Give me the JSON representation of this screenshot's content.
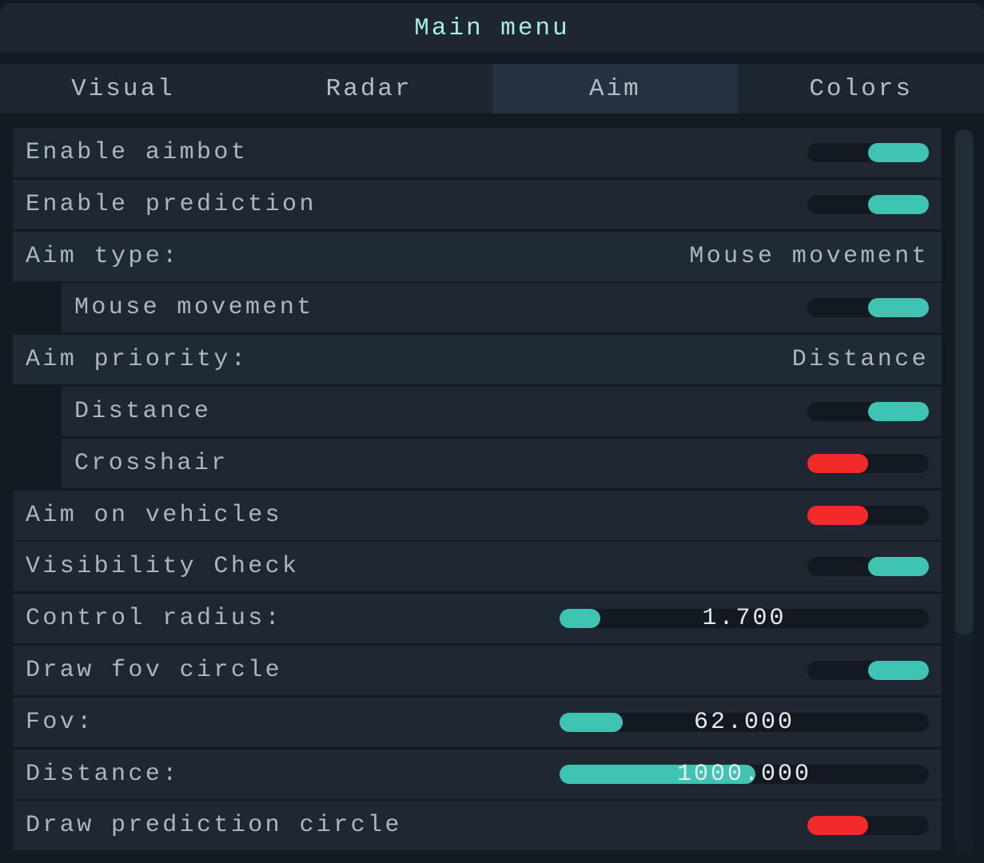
{
  "window": {
    "title": "Main menu"
  },
  "tabs": [
    {
      "label": "Visual",
      "active": false
    },
    {
      "label": "Radar",
      "active": false
    },
    {
      "label": "Aim",
      "active": true
    },
    {
      "label": "Colors",
      "active": false
    }
  ],
  "colors": {
    "accent_on": "#3fc4b4",
    "accent_off": "#f22a2a",
    "background": "#1e2732",
    "title_text": "#a6ece4"
  },
  "rows": [
    {
      "label": "Enable aimbot",
      "type": "toggle",
      "on": true
    },
    {
      "label": "Enable prediction",
      "type": "toggle",
      "on": true
    },
    {
      "label": "Aim type:",
      "type": "header",
      "value": "Mouse movement"
    },
    {
      "label": "Mouse movement",
      "type": "toggle",
      "on": true,
      "indent": true
    },
    {
      "label": "Aim priority:",
      "type": "header",
      "value": "Distance"
    },
    {
      "label": "Distance",
      "type": "toggle",
      "on": true,
      "indent": true
    },
    {
      "label": "Crosshair",
      "type": "toggle",
      "on": false,
      "indent": true
    },
    {
      "label": "Aim on vehicles",
      "type": "toggle",
      "on": false
    },
    {
      "label": "Visibility Check",
      "type": "toggle",
      "on": true
    },
    {
      "label": "Control radius:",
      "type": "slider",
      "value": "1.700",
      "fill_fraction": 0.11
    },
    {
      "label": "Draw fov circle",
      "type": "toggle",
      "on": true
    },
    {
      "label": "Fov:",
      "type": "slider",
      "value": "62.000",
      "fill_fraction": 0.17
    },
    {
      "label": "Distance:",
      "type": "slider",
      "value": "1000.000",
      "fill_fraction": 0.53
    },
    {
      "label": "Draw prediction circle",
      "type": "toggle",
      "on": false
    }
  ],
  "scrollbar": {
    "visible_fraction": 0.7
  }
}
